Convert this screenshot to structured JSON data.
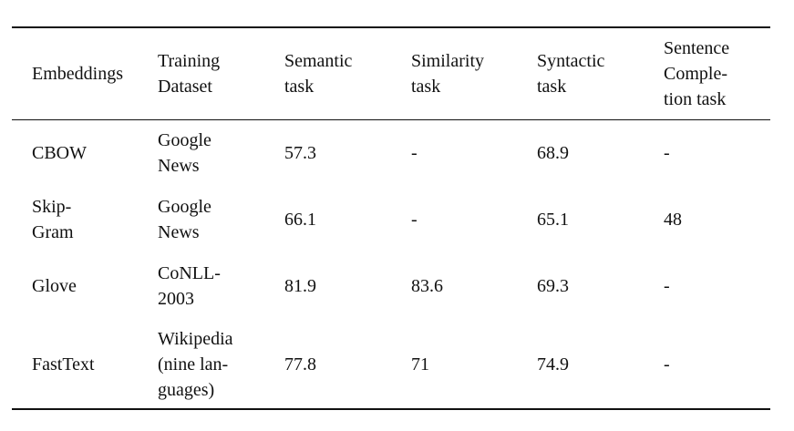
{
  "table": {
    "header": [
      [
        "Embeddings"
      ],
      [
        "Training",
        "Dataset"
      ],
      [
        "Semantic",
        "task"
      ],
      [
        "Similarity",
        "task"
      ],
      [
        "Syntactic",
        "task"
      ],
      [
        "Sentence",
        "Comple-",
        "tion task"
      ]
    ],
    "rows": [
      [
        [
          "CBOW"
        ],
        [
          "Google",
          "News"
        ],
        [
          "57.3"
        ],
        [
          "-"
        ],
        [
          "68.9"
        ],
        [
          "-"
        ]
      ],
      [
        [
          "Skip-",
          "Gram"
        ],
        [
          "Google",
          "News"
        ],
        [
          "66.1"
        ],
        [
          "-"
        ],
        [
          "65.1"
        ],
        [
          "48"
        ]
      ],
      [
        [
          "Glove"
        ],
        [
          "CoNLL-",
          "2003"
        ],
        [
          "81.9"
        ],
        [
          "83.6"
        ],
        [
          "69.3"
        ],
        [
          "-"
        ]
      ],
      [
        [
          "FastText"
        ],
        [
          "Wikipedia",
          "(nine lan-",
          "guages)"
        ],
        [
          "77.8"
        ],
        [
          "71"
        ],
        [
          "74.9"
        ],
        [
          "-"
        ]
      ]
    ]
  }
}
